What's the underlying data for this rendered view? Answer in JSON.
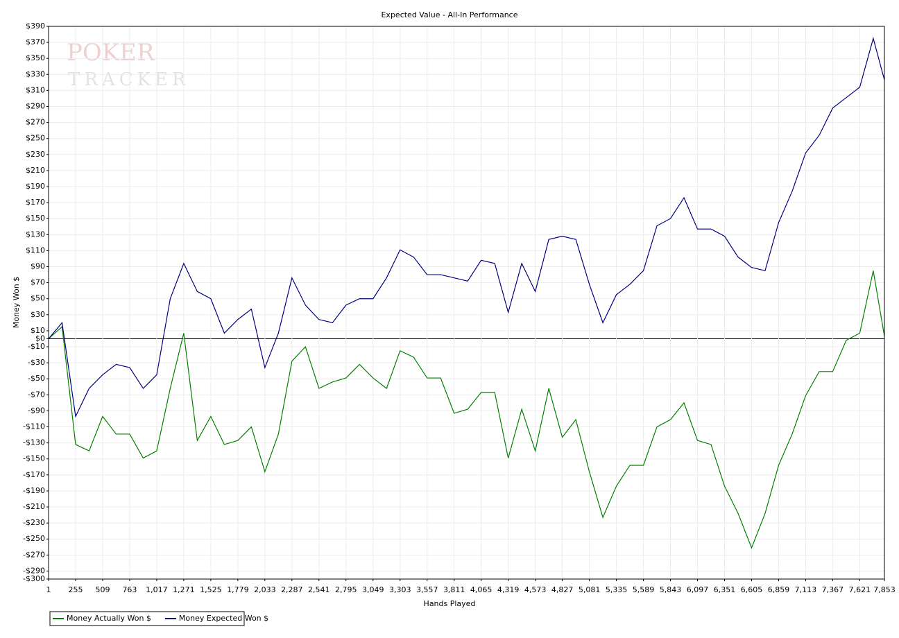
{
  "chart_data": {
    "type": "line",
    "title": "Expected Value - All-In Performance",
    "xlabel": "Hands Played",
    "ylabel": "Money Won $",
    "watermark": [
      "POKER",
      "TRACKER"
    ],
    "x": [
      1,
      128,
      255,
      382,
      509,
      636,
      763,
      890,
      1017,
      1144,
      1271,
      1398,
      1525,
      1652,
      1779,
      1906,
      2033,
      2160,
      2287,
      2414,
      2541,
      2668,
      2795,
      2922,
      3049,
      3176,
      3303,
      3430,
      3557,
      3684,
      3811,
      3938,
      4065,
      4192,
      4319,
      4446,
      4573,
      4700,
      4827,
      4954,
      5081,
      5208,
      5335,
      5462,
      5589,
      5716,
      5843,
      5970,
      6097,
      6224,
      6351,
      6478,
      6605,
      6732,
      6859,
      6986,
      7113,
      7240,
      7367,
      7494,
      7621,
      7748,
      7853
    ],
    "series": [
      {
        "name": "Money Actually Won $",
        "color": "#008000",
        "values": [
          0,
          15,
          -132,
          -140,
          -97,
          -119,
          -119,
          -149,
          -140,
          -62,
          7,
          -127,
          -97,
          -132,
          -127,
          -110,
          -166,
          -119,
          -28,
          -10,
          -62,
          -54,
          -49,
          -32,
          -49,
          -62,
          -15,
          -23,
          -49,
          -49,
          -93,
          -88,
          -67,
          -67,
          -149,
          -88,
          -140,
          -62,
          -123,
          -101,
          -166,
          -223,
          -184,
          -158,
          -158,
          -110,
          -101,
          -80,
          -127,
          -132,
          -184,
          -218,
          -261,
          -218,
          -158,
          -119,
          -71,
          -41,
          -41,
          -2,
          7,
          85,
          3
        ]
      },
      {
        "name": "Money Expected Won $",
        "color": "#000080",
        "values": [
          0,
          20,
          -97,
          -62,
          -45,
          -32,
          -36,
          -62,
          -45,
          50,
          94,
          59,
          50,
          7,
          24,
          37,
          -36,
          7,
          76,
          42,
          24,
          20,
          42,
          50,
          50,
          76,
          111,
          102,
          80,
          80,
          76,
          72,
          98,
          94,
          33,
          94,
          59,
          124,
          128,
          124,
          68,
          20,
          55,
          68,
          85,
          141,
          150,
          176,
          137,
          137,
          128,
          102,
          89,
          85,
          145,
          184,
          232,
          254,
          288,
          301,
          314,
          375,
          323
        ]
      }
    ],
    "xlim": [
      1,
      7853
    ],
    "xticks": [
      1,
      255,
      509,
      763,
      {
        "value": 1017,
        "label": "1,017"
      },
      {
        "value": 1271,
        "label": "1,271"
      },
      {
        "value": 1525,
        "label": "1,525"
      },
      {
        "value": 1779,
        "label": "1,779"
      },
      {
        "value": 2033,
        "label": "2,033"
      },
      {
        "value": 2287,
        "label": "2,287"
      },
      {
        "value": 2541,
        "label": "2,541"
      },
      {
        "value": 2795,
        "label": "2,795"
      },
      {
        "value": 3049,
        "label": "3,049"
      },
      {
        "value": 3303,
        "label": "3,303"
      },
      {
        "value": 3557,
        "label": "3,557"
      },
      {
        "value": 3811,
        "label": "3,811"
      },
      {
        "value": 4065,
        "label": "4,065"
      },
      {
        "value": 4319,
        "label": "4,319"
      },
      {
        "value": 4573,
        "label": "4,573"
      },
      {
        "value": 4827,
        "label": "4,827"
      },
      {
        "value": 5081,
        "label": "5,081"
      },
      {
        "value": 5335,
        "label": "5,335"
      },
      {
        "value": 5589,
        "label": "5,589"
      },
      {
        "value": 5843,
        "label": "5,843"
      },
      {
        "value": 6097,
        "label": "6,097"
      },
      {
        "value": 6351,
        "label": "6,351"
      },
      {
        "value": 6605,
        "label": "6,605"
      },
      {
        "value": 6859,
        "label": "6,859"
      },
      {
        "value": 7113,
        "label": "7,113"
      },
      {
        "value": 7367,
        "label": "7,367"
      },
      {
        "value": 7621,
        "label": "7,621"
      },
      {
        "value": 7853,
        "label": "7,853"
      }
    ],
    "ylim": [
      -300,
      390
    ],
    "yticks": [
      {
        "value": 390,
        "label": "$390"
      },
      {
        "value": 370,
        "label": "$370"
      },
      {
        "value": 350,
        "label": "$350"
      },
      {
        "value": 330,
        "label": "$330"
      },
      {
        "value": 310,
        "label": "$310"
      },
      {
        "value": 290,
        "label": "$290"
      },
      {
        "value": 270,
        "label": "$270"
      },
      {
        "value": 250,
        "label": "$250"
      },
      {
        "value": 230,
        "label": "$230"
      },
      {
        "value": 210,
        "label": "$210"
      },
      {
        "value": 190,
        "label": "$190"
      },
      {
        "value": 170,
        "label": "$170"
      },
      {
        "value": 150,
        "label": "$150"
      },
      {
        "value": 130,
        "label": "$130"
      },
      {
        "value": 110,
        "label": "$110"
      },
      {
        "value": 90,
        "label": "$90"
      },
      {
        "value": 70,
        "label": "$70"
      },
      {
        "value": 50,
        "label": "$50"
      },
      {
        "value": 30,
        "label": "$30"
      },
      {
        "value": 10,
        "label": "$10"
      },
      {
        "value": 0,
        "label": "$0"
      },
      {
        "value": -10,
        "label": "-$10"
      },
      {
        "value": -30,
        "label": "-$30"
      },
      {
        "value": -50,
        "label": "-$50"
      },
      {
        "value": -70,
        "label": "-$70"
      },
      {
        "value": -90,
        "label": "-$90"
      },
      {
        "value": -110,
        "label": "-$110"
      },
      {
        "value": -130,
        "label": "-$130"
      },
      {
        "value": -150,
        "label": "-$150"
      },
      {
        "value": -170,
        "label": "-$170"
      },
      {
        "value": -190,
        "label": "-$190"
      },
      {
        "value": -210,
        "label": "-$210"
      },
      {
        "value": -230,
        "label": "-$230"
      },
      {
        "value": -250,
        "label": "-$250"
      },
      {
        "value": -270,
        "label": "-$270"
      },
      {
        "value": -290,
        "label": "-$290"
      },
      {
        "value": -300,
        "label": "-$300"
      }
    ],
    "grid": true,
    "legend": "bottom-left"
  }
}
